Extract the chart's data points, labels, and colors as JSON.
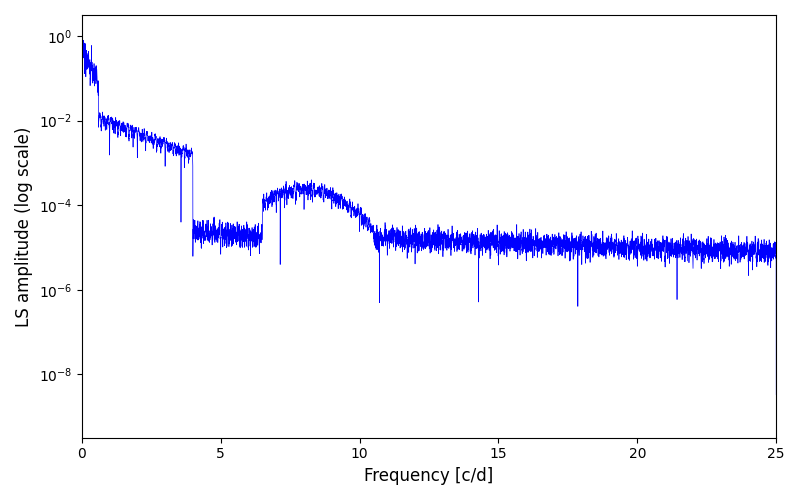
{
  "xlabel": "Frequency [c/d]",
  "ylabel": "LS amplitude (log scale)",
  "xlim": [
    0,
    25
  ],
  "ylim_log_min": -9.5,
  "ylim_log_max": 0.5,
  "line_color": "#0000ff",
  "line_width": 0.5,
  "figsize": [
    8.0,
    5.0
  ],
  "dpi": 100,
  "freq_min": 0.0,
  "freq_max": 25.0,
  "n_points": 6000,
  "seed": 7,
  "background_color": "#ffffff",
  "tick_label_size": 10,
  "axis_label_size": 12
}
